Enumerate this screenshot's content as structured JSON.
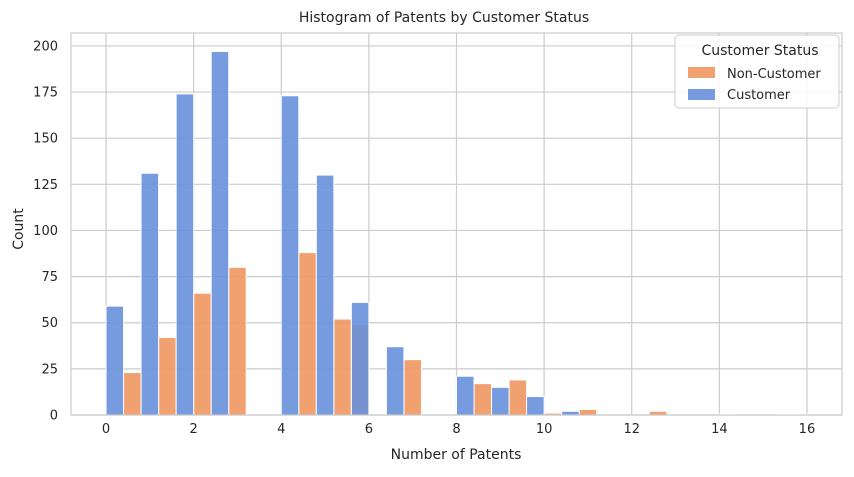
{
  "chart_data": {
    "type": "bar",
    "title": "Histogram of Patents by Customer Status",
    "xlabel": "Number of Patents",
    "ylabel": "Count",
    "xlim": [
      -0.8,
      16.8
    ],
    "ylim": [
      0,
      207
    ],
    "xticks": [
      0,
      2,
      4,
      6,
      8,
      10,
      12,
      14,
      16
    ],
    "yticks": [
      0,
      25,
      50,
      75,
      100,
      125,
      150,
      175,
      200
    ],
    "grid": true,
    "legend": {
      "title": "Customer Status",
      "placement": "top-right",
      "entries": [
        {
          "name": "Non-Customer",
          "color": "#f0975f"
        },
        {
          "name": "Customer",
          "color": "#6890db"
        }
      ]
    },
    "series": [
      {
        "name": "Non-Customer",
        "color": "#f0975f",
        "bars": [
          {
            "x0": 0.4,
            "x1": 0.8,
            "value": 23
          },
          {
            "x0": 1.2,
            "x1": 1.6,
            "value": 42
          },
          {
            "x0": 2.0,
            "x1": 2.4,
            "value": 66
          },
          {
            "x0": 2.8,
            "x1": 3.2,
            "value": 80
          },
          {
            "x0": 4.4,
            "x1": 4.8,
            "value": 88
          },
          {
            "x0": 5.2,
            "x1": 5.6,
            "value": 52
          },
          {
            "x0": 5.6,
            "x1": 6.0,
            "value": 49
          },
          {
            "x0": 6.8,
            "x1": 7.2,
            "value": 30
          },
          {
            "x0": 8.4,
            "x1": 8.8,
            "value": 17
          },
          {
            "x0": 9.2,
            "x1": 9.6,
            "value": 19
          },
          {
            "x0": 10.0,
            "x1": 10.4,
            "value": 1
          },
          {
            "x0": 10.8,
            "x1": 11.2,
            "value": 3
          },
          {
            "x0": 12.4,
            "x1": 12.8,
            "value": 2
          }
        ]
      },
      {
        "name": "Customer",
        "color": "#6890db",
        "bars": [
          {
            "x0": 0.0,
            "x1": 0.4,
            "value": 59
          },
          {
            "x0": 0.8,
            "x1": 1.2,
            "value": 131
          },
          {
            "x0": 1.6,
            "x1": 2.0,
            "value": 174
          },
          {
            "x0": 2.4,
            "x1": 2.8,
            "value": 197
          },
          {
            "x0": 4.0,
            "x1": 4.4,
            "value": 173
          },
          {
            "x0": 4.8,
            "x1": 5.2,
            "value": 130
          },
          {
            "x0": 5.6,
            "x1": 6.0,
            "value": 61
          },
          {
            "x0": 6.4,
            "x1": 6.8,
            "value": 37
          },
          {
            "x0": 8.0,
            "x1": 8.4,
            "value": 21
          },
          {
            "x0": 8.8,
            "x1": 9.2,
            "value": 15
          },
          {
            "x0": 9.6,
            "x1": 10.0,
            "value": 10
          },
          {
            "x0": 10.4,
            "x1": 10.8,
            "value": 2
          },
          {
            "x0": 14.0,
            "x1": 14.4,
            "value": 0.5
          },
          {
            "x0": 15.2,
            "x1": 15.6,
            "value": 0.5
          },
          {
            "x0": 15.6,
            "x1": 16.0,
            "value": 0.5
          }
        ]
      }
    ]
  }
}
